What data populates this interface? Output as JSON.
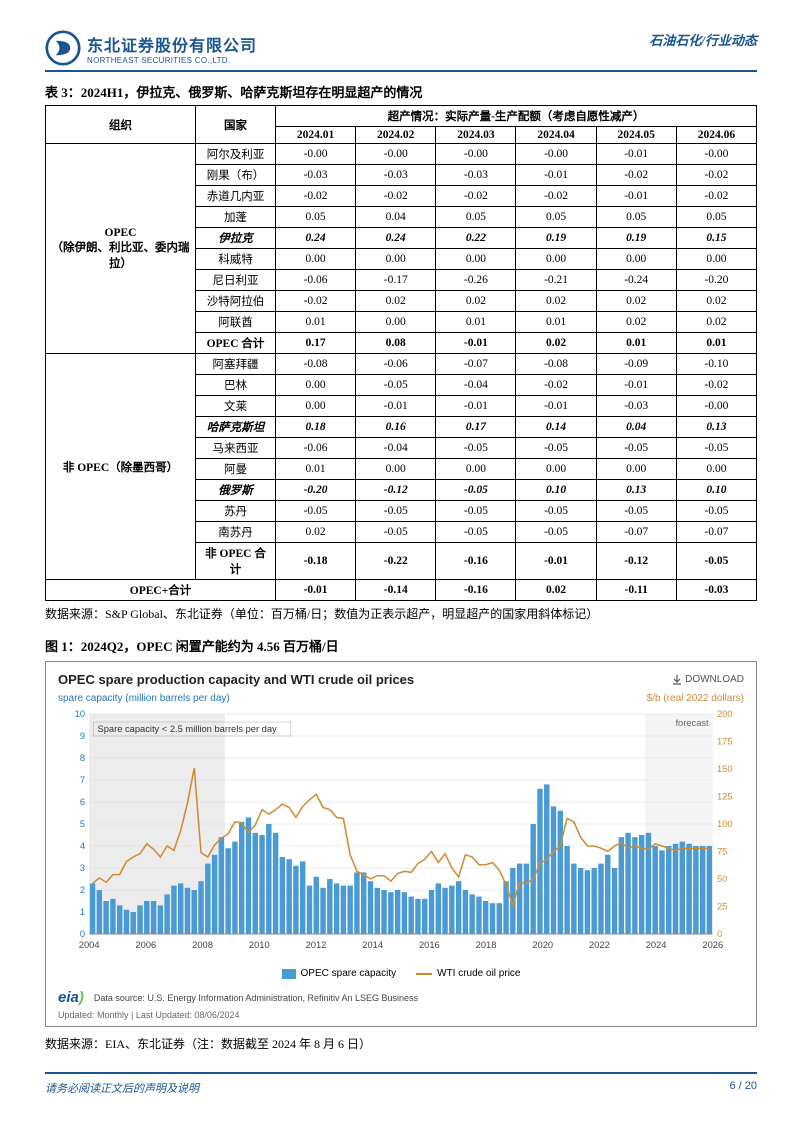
{
  "header": {
    "company_cn": "东北证券股份有限公司",
    "company_en": "NORTHEAST SECURITIES CO.,LTD.",
    "category": "石油石化/行业动态"
  },
  "table3": {
    "title": "表 3：2024H1，伊拉克、俄罗斯、哈萨克斯坦存在明显超产的情况",
    "header_org": "组织",
    "header_country": "国家",
    "header_span": "超产情况：实际产量-生产配额（考虑自愿性减产）",
    "months": [
      "2024.01",
      "2024.02",
      "2024.03",
      "2024.04",
      "2024.05",
      "2024.06"
    ],
    "group_opec": "OPEC\n（除伊朗、利比亚、委内瑞拉）",
    "group_nonopec": "非 OPEC（除墨西哥）",
    "opec_rows": [
      {
        "country": "阿尔及利亚",
        "vals": [
          "-0.00",
          "-0.00",
          "-0.00",
          "-0.00",
          "-0.01",
          "-0.00"
        ],
        "ital": false
      },
      {
        "country": "刚果（布）",
        "vals": [
          "-0.03",
          "-0.03",
          "-0.03",
          "-0.01",
          "-0.02",
          "-0.02"
        ],
        "ital": false
      },
      {
        "country": "赤道几内亚",
        "vals": [
          "-0.02",
          "-0.02",
          "-0.02",
          "-0.02",
          "-0.01",
          "-0.02"
        ],
        "ital": false
      },
      {
        "country": "加蓬",
        "vals": [
          "0.05",
          "0.04",
          "0.05",
          "0.05",
          "0.05",
          "0.05"
        ],
        "ital": false
      },
      {
        "country": "伊拉克",
        "vals": [
          "0.24",
          "0.24",
          "0.22",
          "0.19",
          "0.19",
          "0.15"
        ],
        "ital": true
      },
      {
        "country": "科威特",
        "vals": [
          "0.00",
          "0.00",
          "0.00",
          "0.00",
          "0.00",
          "0.00"
        ],
        "ital": false
      },
      {
        "country": "尼日利亚",
        "vals": [
          "-0.06",
          "-0.17",
          "-0.26",
          "-0.21",
          "-0.24",
          "-0.20"
        ],
        "ital": false
      },
      {
        "country": "沙特阿拉伯",
        "vals": [
          "-0.02",
          "0.02",
          "0.02",
          "0.02",
          "0.02",
          "0.02"
        ],
        "ital": false
      },
      {
        "country": "阿联酋",
        "vals": [
          "0.01",
          "0.00",
          "0.01",
          "0.01",
          "0.02",
          "0.02"
        ],
        "ital": false
      }
    ],
    "opec_total": {
      "country": "OPEC 合计",
      "vals": [
        "0.17",
        "0.08",
        "-0.01",
        "0.02",
        "0.01",
        "0.01"
      ]
    },
    "nonopec_rows": [
      {
        "country": "阿塞拜疆",
        "vals": [
          "-0.08",
          "-0.06",
          "-0.07",
          "-0.08",
          "-0.09",
          "-0.10"
        ],
        "ital": false
      },
      {
        "country": "巴林",
        "vals": [
          "0.00",
          "-0.05",
          "-0.04",
          "-0.02",
          "-0.01",
          "-0.02"
        ],
        "ital": false
      },
      {
        "country": "文莱",
        "vals": [
          "0.00",
          "-0.01",
          "-0.01",
          "-0.01",
          "-0.03",
          "-0.00"
        ],
        "ital": false
      },
      {
        "country": "哈萨克斯坦",
        "vals": [
          "0.18",
          "0.16",
          "0.17",
          "0.14",
          "0.04",
          "0.13"
        ],
        "ital": true
      },
      {
        "country": "马来西亚",
        "vals": [
          "-0.06",
          "-0.04",
          "-0.05",
          "-0.05",
          "-0.05",
          "-0.05"
        ],
        "ital": false
      },
      {
        "country": "阿曼",
        "vals": [
          "0.01",
          "0.00",
          "0.00",
          "0.00",
          "0.00",
          "0.00"
        ],
        "ital": false
      },
      {
        "country": "俄罗斯",
        "vals": [
          "-0.20",
          "-0.12",
          "-0.05",
          "0.10",
          "0.13",
          "0.10"
        ],
        "ital": true
      },
      {
        "country": "苏丹",
        "vals": [
          "-0.05",
          "-0.05",
          "-0.05",
          "-0.05",
          "-0.05",
          "-0.05"
        ],
        "ital": false
      },
      {
        "country": "南苏丹",
        "vals": [
          "0.02",
          "-0.05",
          "-0.05",
          "-0.05",
          "-0.07",
          "-0.07"
        ],
        "ital": false
      }
    ],
    "nonopec_total": {
      "country": "非 OPEC 合计",
      "vals": [
        "-0.18",
        "-0.22",
        "-0.16",
        "-0.01",
        "-0.12",
        "-0.05"
      ]
    },
    "grand_total": {
      "label": "OPEC+合计",
      "vals": [
        "-0.01",
        "-0.14",
        "-0.16",
        "0.02",
        "-0.11",
        "-0.03"
      ]
    },
    "source": "数据来源：S&P Global、东北证券（单位：百万桶/日；数值为正表示超产，明显超产的国家用斜体标记）"
  },
  "figure1": {
    "title": "图 1：2024Q2，OPEC 闲置产能约为 4.56 百万桶/日",
    "chart_title": "OPEC spare production capacity and WTI crude oil prices",
    "download": "DOWNLOAD",
    "y_left_label": "spare capacity (million barrels per day)",
    "y_right_label": "$/b (real 2022 dollars)",
    "annotation": "Spare capacity < 2.5 million barrels per day",
    "forecast": "forecast",
    "y_left": {
      "min": 0,
      "max": 10,
      "step": 1
    },
    "y_right": {
      "min": 0,
      "max": 200,
      "step": 25
    },
    "x_ticks": [
      "2004",
      "2006",
      "2008",
      "2010",
      "2012",
      "2014",
      "2016",
      "2018",
      "2020",
      "2022",
      "2024",
      "2026"
    ],
    "bars": [
      2.3,
      2.0,
      1.5,
      1.6,
      1.3,
      1.1,
      1.0,
      1.3,
      1.5,
      1.5,
      1.3,
      1.8,
      2.2,
      2.3,
      2.1,
      2.0,
      2.4,
      3.2,
      3.6,
      4.4,
      3.9,
      4.2,
      5.1,
      5.3,
      4.6,
      4.5,
      5.0,
      4.6,
      3.5,
      3.4,
      3.1,
      3.3,
      2.2,
      2.6,
      2.1,
      2.5,
      2.3,
      2.2,
      2.2,
      2.8,
      2.8,
      2.4,
      2.1,
      2.0,
      1.9,
      2.0,
      1.9,
      1.7,
      1.6,
      1.6,
      2.0,
      2.3,
      2.1,
      2.2,
      2.4,
      2.0,
      1.8,
      1.7,
      1.5,
      1.4,
      1.4,
      2.4,
      3.0,
      3.2,
      3.2,
      5.0,
      6.6,
      6.8,
      5.8,
      5.6,
      4.0,
      3.2,
      3.0,
      2.9,
      3.0,
      3.2,
      3.6,
      3.0,
      4.4,
      4.6,
      4.4,
      4.5,
      4.6,
      4.0,
      3.8,
      4.0,
      4.1,
      4.2,
      4.1,
      4.0,
      4.0,
      4.0
    ],
    "line": [
      46,
      51,
      47,
      54,
      54,
      66,
      70,
      73,
      82,
      77,
      70,
      80,
      76,
      94,
      119,
      151,
      74,
      70,
      81,
      87,
      91,
      102,
      101,
      92,
      99,
      113,
      109,
      113,
      118,
      115,
      106,
      116,
      122,
      127,
      115,
      113,
      106,
      105,
      72,
      57,
      54,
      50,
      53,
      53,
      48,
      55,
      57,
      56,
      64,
      68,
      75,
      65,
      73,
      60,
      52,
      72,
      70,
      63,
      63,
      65,
      58,
      45,
      26,
      47,
      46,
      50,
      64,
      68,
      75,
      80,
      105,
      102,
      88,
      80,
      80,
      78,
      75,
      80,
      83,
      78,
      80,
      78,
      77,
      82,
      80,
      78,
      76,
      78,
      78,
      78,
      78,
      78
    ],
    "shade_end_index": 20,
    "forecast_start_index": 82,
    "colors": {
      "bar": "#4a9bd4",
      "line": "#d08b34",
      "grid": "#d9d9d9",
      "shade": "#ececec",
      "forecast_shade": "#f4f4f4"
    },
    "legend_bar": "OPEC spare capacity",
    "legend_line": "WTI crude oil price",
    "eia_source": "Data source: U.S. Energy Information Administration, Refinitiv An LSEG Business",
    "eia_updated": "Updated: Monthly | Last Updated: 08/06/2024",
    "source": "数据来源：EIA、东北证券（注：数据截至 2024 年 8 月 6 日）"
  },
  "footer": {
    "note": "请务必阅读正文后的声明及说明",
    "page": "6 / 20"
  }
}
